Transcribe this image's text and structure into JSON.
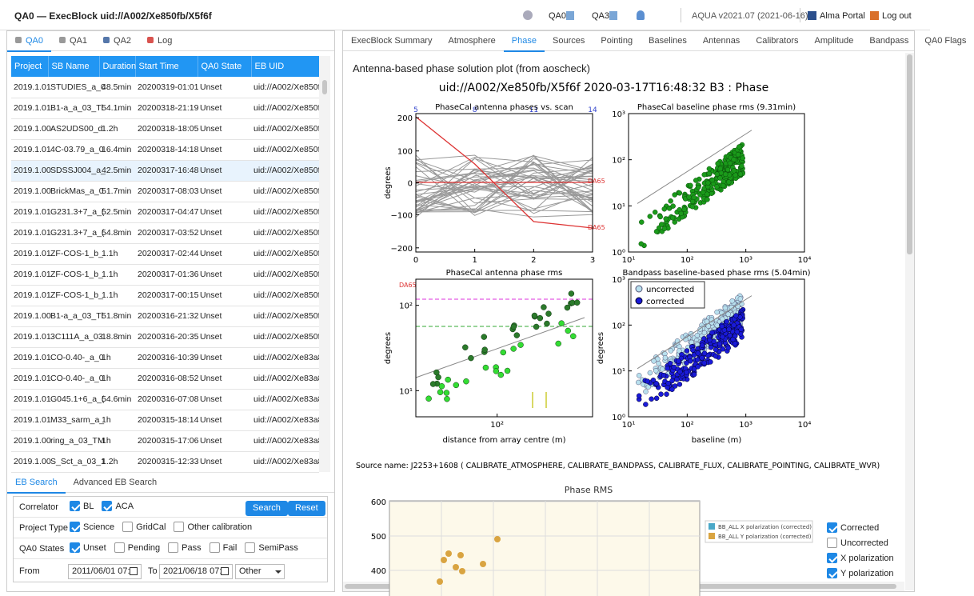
{
  "header": {
    "title": "QA0 — ExecBlock uid://A002/Xe850fb/X5f6f",
    "nav": [
      "QA0",
      "QA3"
    ],
    "version": "AQUA v2021.07 (2021-06-16)",
    "links": [
      "Alma Portal",
      "Log out"
    ]
  },
  "left_tabs": [
    "QA0",
    "QA1",
    "QA2",
    "Log"
  ],
  "table": {
    "columns": [
      "Project",
      "SB Name",
      "Duration",
      "Start Time",
      "QA0 State",
      "EB UID"
    ],
    "rows": [
      [
        "2019.1.01",
        "STUDIES_a_0",
        "48.5min",
        "20200319-01:01",
        "Unset",
        "uid://A002/Xe850fb"
      ],
      [
        "2019.1.01",
        "B1-a_a_03_Tl",
        "54.1min",
        "20200318-21:19",
        "Unset",
        "uid://A002/Xe850fb"
      ],
      [
        "2019.1.00",
        "AS2UDS00_d",
        "1.2h",
        "20200318-18:05",
        "Unset",
        "uid://A002/Xe850fb"
      ],
      [
        "2019.1.01",
        "4C-03.79_a_0",
        "16.4min",
        "20200318-14:18",
        "Unset",
        "uid://A002/Xe850fb"
      ],
      [
        "2019.1.00",
        "SDSSJ004_a_",
        "42.5min",
        "20200317-16:48",
        "Unset",
        "uid://A002/Xe850fb"
      ],
      [
        "2019.1.00",
        "BrickMas_a_0",
        "51.7min",
        "20200317-08:03",
        "Unset",
        "uid://A002/Xe850fb"
      ],
      [
        "2019.1.01",
        "G231.3+7_a_(",
        "52.5min",
        "20200317-04:47",
        "Unset",
        "uid://A002/Xe850fb"
      ],
      [
        "2019.1.01",
        "G231.3+7_a_(",
        "54.8min",
        "20200317-03:52",
        "Unset",
        "uid://A002/Xe850fb"
      ],
      [
        "2019.1.01",
        "ZF-COS-1_b_",
        "1.1h",
        "20200317-02:44",
        "Unset",
        "uid://A002/Xe850fb"
      ],
      [
        "2019.1.01",
        "ZF-COS-1_b_",
        "1.1h",
        "20200317-01:36",
        "Unset",
        "uid://A002/Xe850fb"
      ],
      [
        "2019.1.01",
        "ZF-COS-1_b_",
        "1.1h",
        "20200317-00:15",
        "Unset",
        "uid://A002/Xe850fb"
      ],
      [
        "2019.1.00",
        "B1-a_a_03_Tl",
        "51.8min",
        "20200316-21:32",
        "Unset",
        "uid://A002/Xe850fb"
      ],
      [
        "2019.1.01",
        "3C111A_a_03",
        "18.8min",
        "20200316-20:35",
        "Unset",
        "uid://A002/Xe850fb"
      ],
      [
        "2019.1.01",
        "CO-0.40-_a_0",
        "1h",
        "20200316-10:39",
        "Unset",
        "uid://A002/Xe83a8"
      ],
      [
        "2019.1.01",
        "CO-0.40-_a_0",
        "1h",
        "20200316-08:52",
        "Unset",
        "uid://A002/Xe83a8"
      ],
      [
        "2019.1.01",
        "G045.1+6_a_(",
        "54.6min",
        "20200316-07:08",
        "Unset",
        "uid://A002/Xe83a8"
      ],
      [
        "2019.1.01",
        "M33_sarm_a_",
        "1h",
        "20200315-18:14",
        "Unset",
        "uid://A002/Xe83a8"
      ],
      [
        "2019.1.00",
        "ring_a_03_TM",
        "1h",
        "20200315-17:06",
        "Unset",
        "uid://A002/Xe83a8"
      ],
      [
        "2019.1.00",
        "S_Sct_a_03_1",
        "1.2h",
        "20200315-12:33",
        "Unset",
        "uid://A002/Xe83a8"
      ]
    ]
  },
  "search": {
    "tabs": [
      "EB Search",
      "Advanced EB Search"
    ],
    "buttons": [
      "Search",
      "Reset"
    ],
    "fields": [
      {
        "label": "Correlator",
        "options": [
          {
            "label": "BL",
            "checked": true
          },
          {
            "label": "ACA",
            "checked": true
          }
        ]
      },
      {
        "label": "Project Type",
        "options": [
          {
            "label": "Science",
            "checked": true
          },
          {
            "label": "GridCal",
            "checked": false
          },
          {
            "label": "Other calibration",
            "checked": false
          }
        ]
      },
      {
        "label": "QA0 States",
        "options": [
          {
            "label": "Unset",
            "checked": true
          },
          {
            "label": "Pending",
            "checked": false
          },
          {
            "label": "Pass",
            "checked": false
          },
          {
            "label": "Fail",
            "checked": false
          },
          {
            "label": "SemiPass",
            "checked": false
          }
        ]
      }
    ],
    "from": {
      "label": "From",
      "value": "2011/06/01 07:"
    },
    "to": {
      "label": "To",
      "value": "2021/06/18 07:"
    },
    "select": "Other"
  },
  "right_tabs": [
    "ExecBlock Summary",
    "Atmosphere",
    "Phase",
    "Sources",
    "Pointing",
    "Baselines",
    "Antennas",
    "Calibrators",
    "Amplitude",
    "Bandpass",
    "QA0 Flags"
  ],
  "content": {
    "heading": "Antenna-based phase solution plot (from aoscheck)",
    "plot_title": "uid://A002/Xe850fb/X5f6f   2020-03-17T16:48:32   B3   :   Phase",
    "subplots": [
      {
        "title": "PhaseCal antenna phases vs. scan",
        "yticks": [
          "200",
          "100",
          "0",
          "−100",
          "−200"
        ],
        "xticks": [
          "0",
          "1",
          "2",
          "3"
        ],
        "top_ticks": [
          "5",
          "8",
          "11",
          "14"
        ],
        "ylabel": "degrees",
        "annotations": [
          "DA65",
          "DA65"
        ]
      },
      {
        "title": "PhaseCal baseline phase rms (9.31min)",
        "yticks": [
          "10³",
          "10²",
          "10¹",
          "10⁰"
        ],
        "xticks": [
          "10¹",
          "10²",
          "10³",
          "10⁴"
        ]
      },
      {
        "title": "PhaseCal antenna phase rms",
        "yticks": [
          "10²",
          "10¹"
        ],
        "xticks": [
          "10²"
        ],
        "xlabel": "distance from array centre (m)",
        "ylabel": "degrees",
        "annotations": [
          "DA65"
        ]
      },
      {
        "title": "Bandpass baseline-based phase rms (5.04min)",
        "yticks": [
          "10³",
          "10²",
          "10¹",
          "10⁰"
        ],
        "xticks": [
          "10¹",
          "10²",
          "10³",
          "10⁴"
        ],
        "xlabel": "baseline  (m)",
        "ylabel": "degrees",
        "legend": [
          "uncorrected",
          "corrected"
        ]
      }
    ],
    "source": "Source name: J2253+1608 ( CALIBRATE_ATMOSPHERE, CALIBRATE_BANDPASS, CALIBRATE_FLUX, CALIBRATE_POINTING, CALIBRATE_WVR)",
    "rms": {
      "title": "Phase RMS",
      "yticks": [
        "600",
        "500",
        "400"
      ],
      "legend": [
        "BB_ALL X polarization (corrected)",
        "BB_ALL Y polarization (corrected)"
      ],
      "options": [
        {
          "label": "Corrected",
          "checked": true
        },
        {
          "label": "Uncorrected",
          "checked": false
        },
        {
          "label": "X polarization",
          "checked": true
        },
        {
          "label": "Y polarization",
          "checked": true
        }
      ]
    }
  }
}
